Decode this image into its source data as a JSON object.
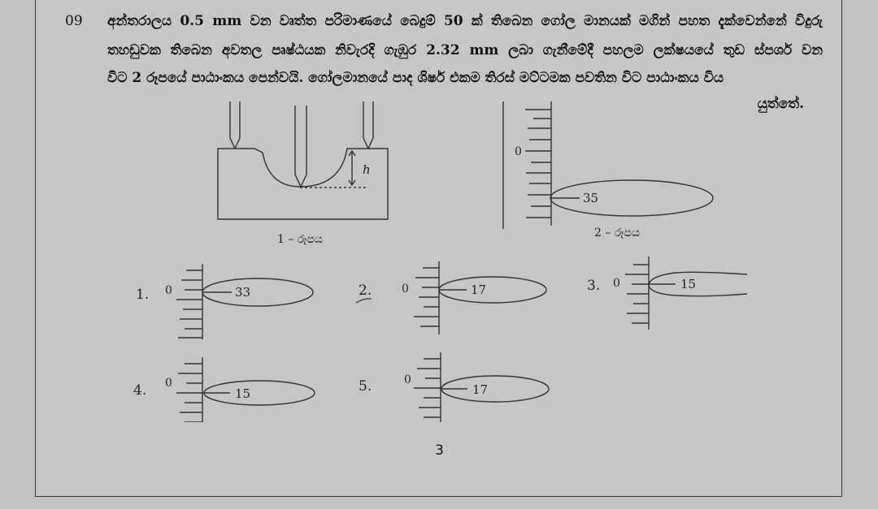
{
  "question": {
    "number": "09",
    "line1": "අන්තරාලය 0.5 mm වන වෘත්ත පරිමාණයේ බෙදුම් 50 ක් තිබෙන ගෝල මානයක් මගින් පහත දැක්වෙන්නේ විදුරු",
    "line2": "තහඩුවක තිබෙන අවතල පෘෂ්ඨයක නිවැරදි ගැඹුර 2.32 mm ලබා ගැනීමේදී පහලම ලක්ෂයයේ තුඩ ස්පර්ශ වන",
    "line3": "විට 2 රූපයේ පාඨාංකය පෙන්වයි. ගෝලමානයේ පාද ශිර්ෂ එකම තිරස් මට්ටමක පවතින විට පාඨාංකය විය",
    "line4": "යුත්තේ."
  },
  "figure1": {
    "dimension_label": "h",
    "caption": "1 – රූපය"
  },
  "figure2": {
    "scale_zero": "0",
    "dial_value": "35",
    "caption": "2 – රූපය"
  },
  "options": [
    {
      "label": "1.",
      "scale_zero": "0",
      "dial_value": "33"
    },
    {
      "label": "2.",
      "scale_zero": "0",
      "dial_value": "17"
    },
    {
      "label": "3.",
      "scale_zero": "0",
      "dial_value": "15"
    },
    {
      "label": "4.",
      "scale_zero": "0",
      "dial_value": "15"
    },
    {
      "label": "5.",
      "scale_zero": "0",
      "dial_value": "17"
    }
  ],
  "page_number": "3"
}
